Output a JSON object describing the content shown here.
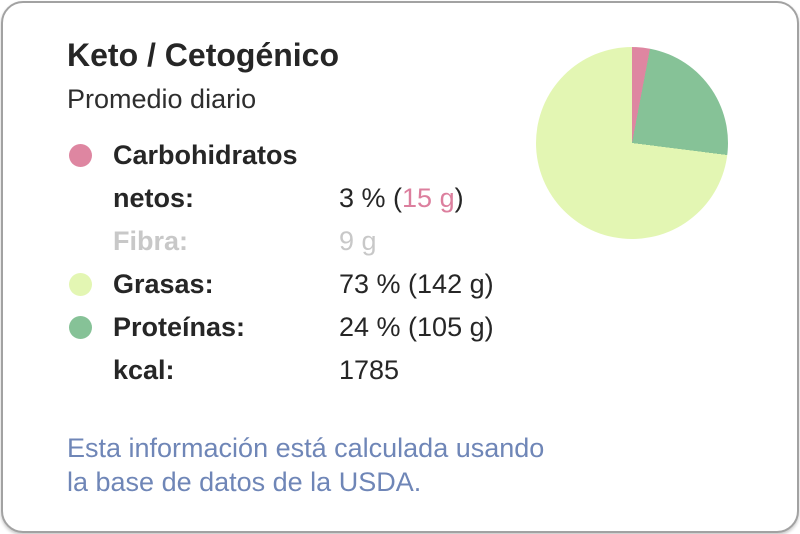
{
  "card": {
    "title": "Keto / Cetogénico",
    "subtitle": "Promedio diario",
    "rows": [
      {
        "label": "Carbohidratos netos:",
        "dot_color": "#DE86A1",
        "value_pre": "3 % (",
        "value_accent": "15 g",
        "value_post": ")"
      },
      {
        "label": "Fibra:",
        "value": "9 g"
      },
      {
        "label": "Grasas:",
        "dot_color": "#E3F6B3",
        "value": "73 % (142 g)"
      },
      {
        "label": "Proteínas:",
        "dot_color": "#86C297",
        "value": "24 % (105 g)"
      },
      {
        "label": "kcal:",
        "value": "1785"
      }
    ],
    "disclaimer": "Esta información está calculada usando la base de datos de la USDA."
  },
  "colors": {
    "carbs_pink": "#DE86A1",
    "fat_light_green": "#E3F6B3",
    "protein_green": "#86C297",
    "accent_pink_text": "#DC7F9E",
    "muted_gray": "#C8C8C8",
    "disclaimer_blue": "#6F86B7",
    "card_border_gray": "#A2A2A2",
    "text_dark": "#262626"
  },
  "chart_data": {
    "type": "pie",
    "slices": [
      {
        "label": "Carbohidratos netos",
        "percent": 3,
        "grams": 15,
        "color": "#DE86A1"
      },
      {
        "label": "Proteínas",
        "percent": 24,
        "grams": 105,
        "color": "#86C297"
      },
      {
        "label": "Grasas",
        "percent": 73,
        "grams": 142,
        "color": "#E3F6B3"
      }
    ],
    "start_angle": "12-oclock",
    "direction": "clockwise",
    "kcal_total": 1785,
    "legend_position": "left-list"
  }
}
